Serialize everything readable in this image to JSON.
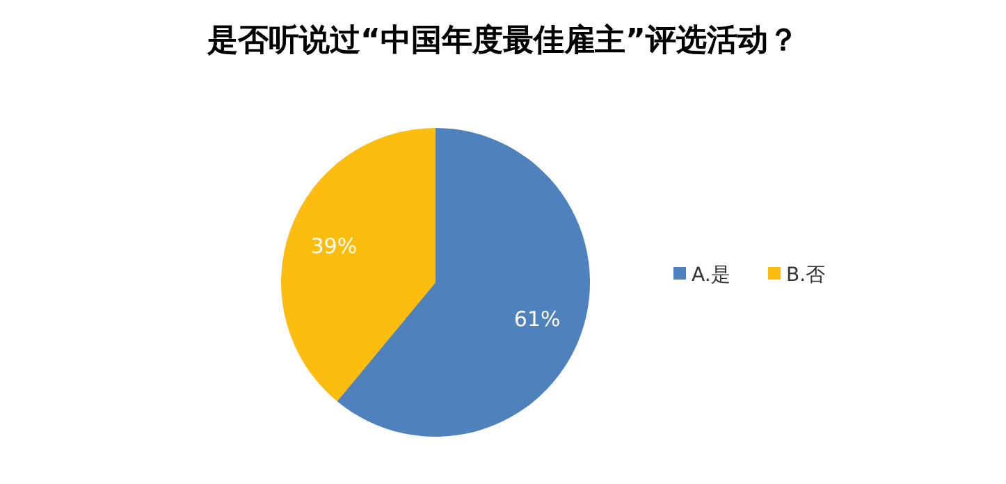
{
  "chart_data": {
    "type": "pie",
    "title": "是否听说过“中国年度最佳雇主”评选活动？",
    "categories": [
      "A.是",
      "B.否"
    ],
    "values": [
      61,
      39
    ],
    "colors": [
      "#4f81bd",
      "#fdbd0f"
    ],
    "value_labels": [
      "61%",
      "39%"
    ],
    "legend": "right"
  }
}
